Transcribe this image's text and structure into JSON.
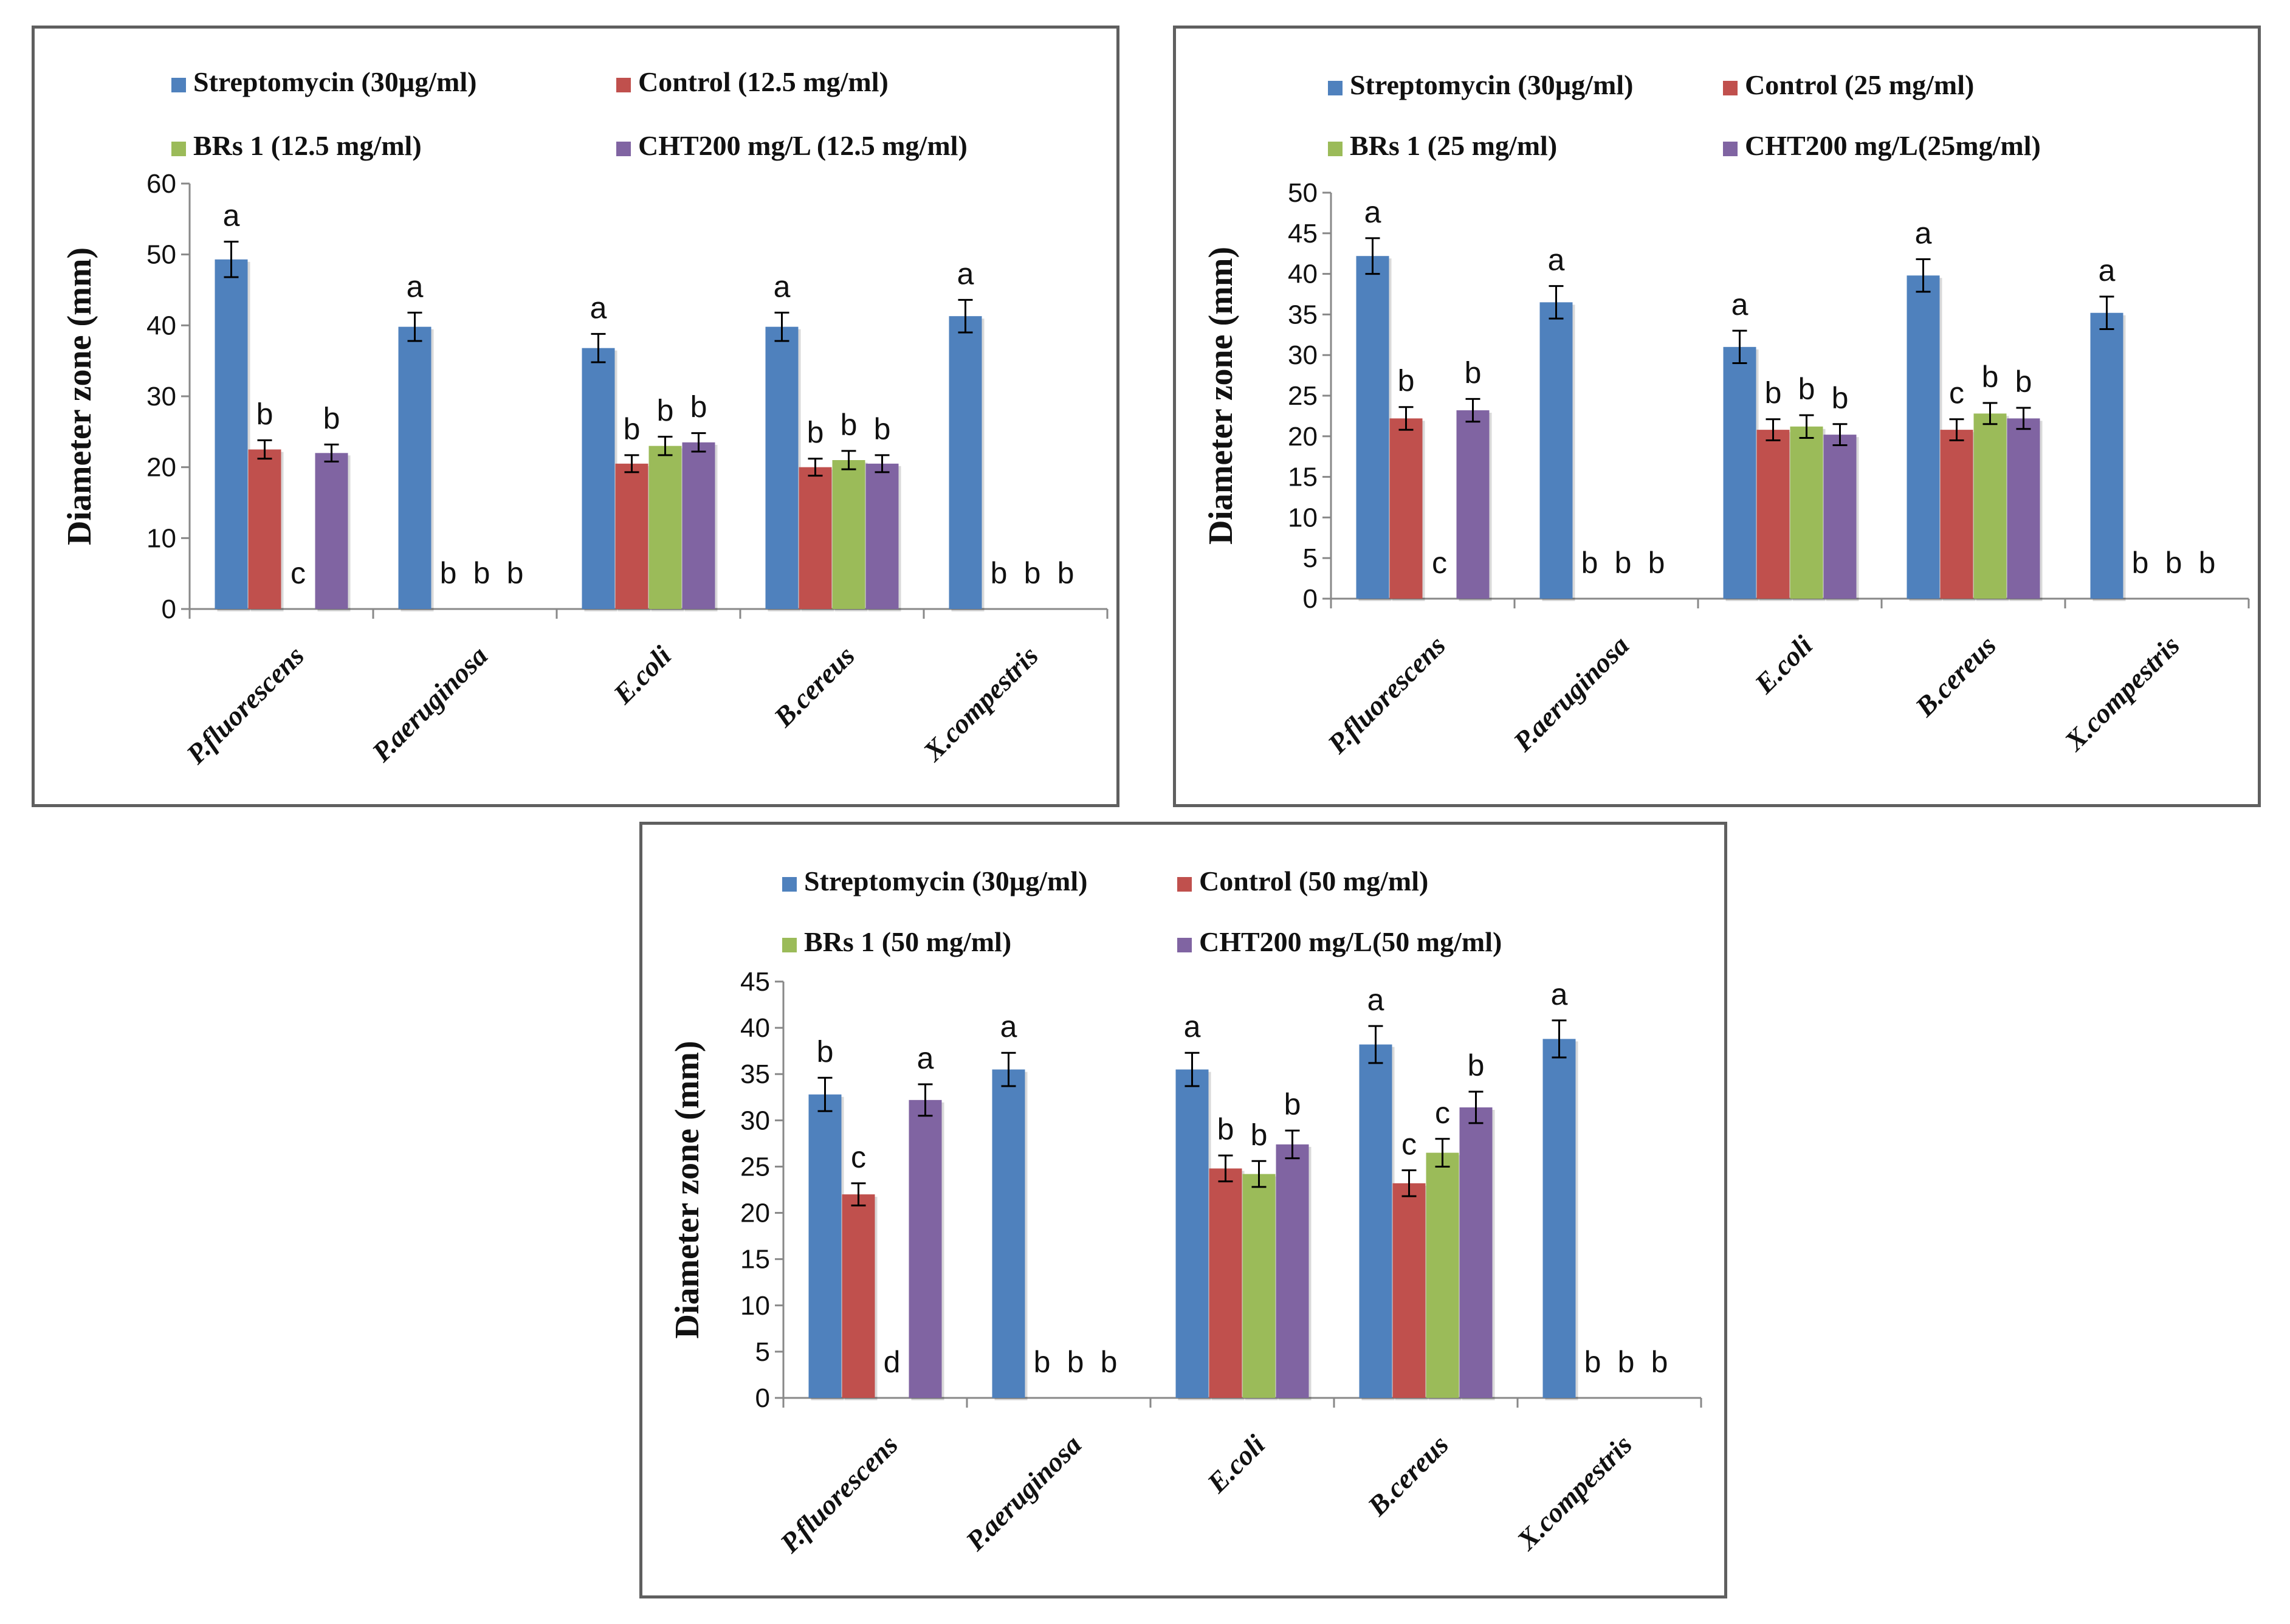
{
  "series_colors": [
    "#4f81bd",
    "#c0504d",
    "#9bbb59",
    "#8064a2"
  ],
  "chart_data": [
    {
      "type": "bar",
      "ylabel": "Diameter zone (mm)",
      "ylim": [
        0,
        60
      ],
      "ytick_step": 10,
      "categories": [
        "P.fluorescens",
        "P.aeruginosa",
        "E.coli",
        "B.cereus",
        "X.compestris"
      ],
      "series": [
        {
          "name": "Streptomycin (30µg/ml)",
          "values": [
            49.3,
            39.8,
            36.8,
            39.8,
            41.3
          ],
          "errors": [
            2.5,
            2.0,
            2.0,
            2.0,
            2.3
          ],
          "letters": [
            "a",
            "a",
            "a",
            "a",
            "a"
          ]
        },
        {
          "name": "Control (12.5 mg/ml)",
          "values": [
            22.5,
            0,
            20.5,
            20.0,
            0
          ],
          "errors": [
            1.3,
            0,
            1.2,
            1.2,
            0
          ],
          "letters": [
            "b",
            "b",
            "b",
            "b",
            "b"
          ]
        },
        {
          "name": "BRs 1 (12.5 mg/ml)",
          "values": [
            0,
            0,
            23.0,
            21.0,
            0
          ],
          "errors": [
            0,
            0,
            1.3,
            1.3,
            0
          ],
          "letters": [
            "c",
            "b",
            "b",
            "b",
            "b"
          ]
        },
        {
          "name": "CHT200 mg/L (12.5 mg/ml)",
          "values": [
            22.0,
            0,
            23.5,
            20.5,
            0
          ],
          "errors": [
            1.2,
            0,
            1.3,
            1.2,
            0
          ],
          "letters": [
            "b",
            "b",
            "b",
            "b",
            "b"
          ]
        }
      ]
    },
    {
      "type": "bar",
      "ylabel": "Diameter zone (mm)",
      "ylim": [
        0,
        50
      ],
      "ytick_step": 5,
      "categories": [
        "P.fluorescens",
        "P.aeruginosa",
        "E.coli",
        "B.cereus",
        "X.compestris"
      ],
      "series": [
        {
          "name": "Streptomycin (30µg/ml)",
          "values": [
            42.2,
            36.5,
            31.0,
            39.8,
            35.2
          ],
          "errors": [
            2.2,
            2.0,
            2.0,
            2.0,
            2.0
          ],
          "letters": [
            "a",
            "a",
            "a",
            "a",
            "a"
          ]
        },
        {
          "name": "Control (25 mg/ml)",
          "values": [
            22.2,
            0,
            20.8,
            20.8,
            0
          ],
          "errors": [
            1.4,
            0,
            1.3,
            1.3,
            0
          ],
          "letters": [
            "b",
            "b",
            "b",
            "c",
            "b"
          ]
        },
        {
          "name": "BRs 1 (25 mg/ml)",
          "values": [
            0,
            0,
            21.2,
            22.8,
            0
          ],
          "errors": [
            0,
            0,
            1.4,
            1.3,
            0
          ],
          "letters": [
            "c",
            "b",
            "b",
            "b",
            "b"
          ]
        },
        {
          "name": "CHT200 mg/L(25mg/ml)",
          "values": [
            23.2,
            0,
            20.2,
            22.2,
            0
          ],
          "errors": [
            1.4,
            0,
            1.3,
            1.3,
            0
          ],
          "letters": [
            "b",
            "b",
            "b",
            "b",
            "b"
          ]
        }
      ]
    },
    {
      "type": "bar",
      "ylabel": "Diameter zone (mm)",
      "ylim": [
        0,
        45
      ],
      "ytick_step": 5,
      "categories": [
        "P.fluorescens",
        "P.aeruginosa",
        "E.coli",
        "B.cereus",
        "X.compestris"
      ],
      "series": [
        {
          "name": "Streptomycin (30µg/ml)",
          "values": [
            32.8,
            35.5,
            35.5,
            38.2,
            38.8
          ],
          "errors": [
            1.8,
            1.8,
            1.8,
            2.0,
            2.0
          ],
          "letters": [
            "b",
            "a",
            "a",
            "a",
            "a"
          ]
        },
        {
          "name": "Control (50 mg/ml)",
          "values": [
            22.0,
            0,
            24.8,
            23.2,
            0
          ],
          "errors": [
            1.2,
            0,
            1.4,
            1.4,
            0
          ],
          "letters": [
            "c",
            "b",
            "b",
            "c",
            "b"
          ]
        },
        {
          "name": "BRs 1 (50 mg/ml)",
          "values": [
            0,
            0,
            24.2,
            26.5,
            0
          ],
          "errors": [
            0,
            0,
            1.4,
            1.5,
            0
          ],
          "letters": [
            "d",
            "b",
            "b",
            "c",
            "b"
          ]
        },
        {
          "name": "CHT200 mg/L(50 mg/ml)",
          "values": [
            32.2,
            0,
            27.4,
            31.4,
            0
          ],
          "errors": [
            1.7,
            0,
            1.5,
            1.7,
            0
          ],
          "letters": [
            "a",
            "b",
            "b",
            "b",
            "b"
          ]
        }
      ]
    }
  ]
}
